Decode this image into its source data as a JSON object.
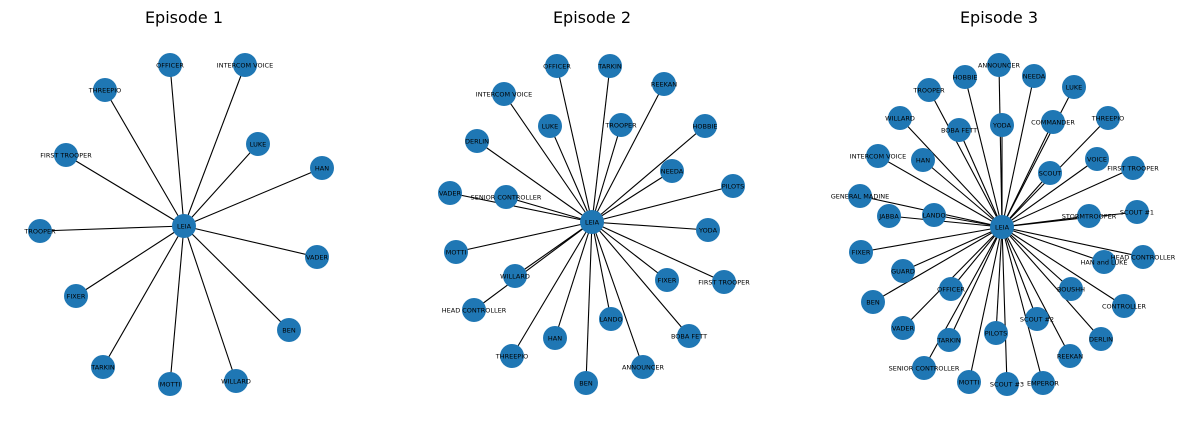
{
  "graphs": [
    {
      "title": "Episode 1",
      "center": "LEIA",
      "nodes": [
        "OFFICER",
        "INTERCOM VOICE",
        "THREEPIO",
        "LUKE",
        "FIRST TROOPER",
        "HAN",
        "TROOPER",
        "VADER",
        "FIXER",
        "BEN",
        "TARKIN",
        "MOTTI",
        "WILLARD"
      ]
    },
    {
      "title": "Episode 2",
      "center": "LEIA",
      "nodes": [
        "OFFICER",
        "TARKIN",
        "REEKAN",
        "INTERCOM VOICE",
        "LUKE",
        "TROOPER",
        "HOBBIE",
        "DERLIN",
        "NEEDA",
        "VADER",
        "SENIOR CONTROLLER",
        "PILOTS",
        "YODA",
        "MOTTI",
        "WILLARD",
        "FIXER",
        "FIRST TROOPER",
        "HEAD CONTROLLER",
        "LANDO",
        "BOBA FETT",
        "HAN",
        "THREEPIO",
        "ANNOUNCER",
        "BEN"
      ]
    },
    {
      "title": "Episode 3",
      "center": "LEIA",
      "nodes": [
        "ANNOUNCER",
        "HOBBIE",
        "NEEDA",
        "TROOPER",
        "LUKE",
        "WILLARD",
        "COMMANDER",
        "THREEPIO",
        "BOBA FETT",
        "YODA",
        "INTERCOM VOICE",
        "HAN",
        "VOICE",
        "SCOUT",
        "FIRST TROOPER",
        "GENERAL MADINE",
        "JABBA",
        "LANDO",
        "STORMTROOPER",
        "SCOUT #1",
        "FIXER",
        "HAN and LUKE",
        "HEAD CONTROLLER",
        "GUARD",
        "BOUSHH",
        "OFFICER",
        "BEN",
        "CONTROLLER",
        "SCOUT #2",
        "VADER",
        "TARKIN",
        "PILOTS",
        "DERLIN",
        "REEKAN",
        "SENIOR CONTROLLER",
        "MOTTI",
        "SCOUT #3",
        "EMPEROR"
      ]
    }
  ]
}
